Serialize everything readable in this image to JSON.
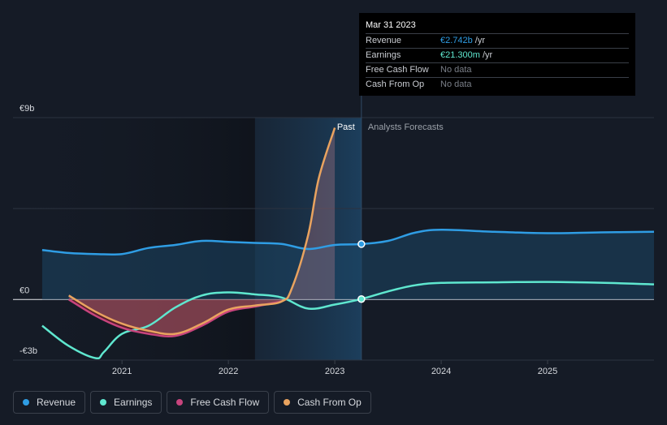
{
  "colors": {
    "revenue": "#2f9de4",
    "earnings": "#5fe7cf",
    "fcf": "#c8447d",
    "cfo": "#e9a35f"
  },
  "tooltip": {
    "date": "Mar 31 2023",
    "rows": [
      {
        "label": "Revenue",
        "value": "€2.742b",
        "unit": "/yr",
        "tone": "blue"
      },
      {
        "label": "Earnings",
        "value": "€21.300m",
        "unit": "/yr",
        "tone": "teal"
      },
      {
        "label": "Free Cash Flow",
        "value": "No data",
        "unit": "",
        "tone": "none"
      },
      {
        "label": "Cash From Op",
        "value": "No data",
        "unit": "",
        "tone": "none"
      }
    ]
  },
  "legend": [
    {
      "label": "Revenue",
      "color": "#2f9de4"
    },
    {
      "label": "Earnings",
      "color": "#5fe7cf"
    },
    {
      "label": "Free Cash Flow",
      "color": "#c8447d"
    },
    {
      "label": "Cash From Op",
      "color": "#e9a35f"
    }
  ],
  "chart_data": {
    "type": "line",
    "title": "",
    "xlabel": "",
    "ylabel": "",
    "x_unit": "year",
    "xlim": [
      2020.22,
      2026.0
    ],
    "ylim": [
      -3,
      9
    ],
    "y_ticks": [
      {
        "value": 9,
        "label": "€9b"
      },
      {
        "value": 0,
        "label": "€0"
      },
      {
        "value": -3,
        "label": "-€3b"
      }
    ],
    "x_ticks": [
      {
        "value": 2021,
        "label": "2021"
      },
      {
        "value": 2022,
        "label": "2022"
      },
      {
        "value": 2023,
        "label": "2023"
      },
      {
        "value": 2024,
        "label": "2024"
      },
      {
        "value": 2025,
        "label": "2025"
      }
    ],
    "past_label": "Past",
    "forecast_label": "Analysts Forecasts",
    "highlight_start": 2022.25,
    "current_date": 2023.25,
    "series": [
      {
        "name": "Revenue",
        "key": "revenue",
        "x": [
          2020.25,
          2020.5,
          2020.75,
          2021.0,
          2021.25,
          2021.5,
          2021.75,
          2022.0,
          2022.25,
          2022.5,
          2022.75,
          2023.0,
          2023.25,
          2023.5,
          2023.75,
          2024.0,
          2024.5,
          2025.0,
          2025.5,
          2026.0
        ],
        "values": [
          2.45,
          2.3,
          2.25,
          2.25,
          2.55,
          2.7,
          2.9,
          2.85,
          2.8,
          2.75,
          2.5,
          2.7,
          2.742,
          2.9,
          3.3,
          3.45,
          3.35,
          3.28,
          3.32,
          3.35
        ]
      },
      {
        "name": "Earnings",
        "key": "earnings",
        "x": [
          2020.25,
          2020.5,
          2020.75,
          2020.83,
          2021.0,
          2021.25,
          2021.5,
          2021.75,
          2022.0,
          2022.25,
          2022.5,
          2022.75,
          2023.0,
          2023.25,
          2023.5,
          2023.75,
          2024.0,
          2024.5,
          2025.0,
          2025.5,
          2026.0
        ],
        "values": [
          -1.3,
          -2.3,
          -2.9,
          -2.6,
          -1.7,
          -1.3,
          -0.4,
          0.2,
          0.35,
          0.25,
          0.1,
          -0.45,
          -0.25,
          0.0213,
          0.4,
          0.7,
          0.82,
          0.85,
          0.87,
          0.83,
          0.75
        ]
      },
      {
        "name": "Free Cash Flow",
        "key": "fcf",
        "x": [
          2020.5,
          2020.75,
          2021.0,
          2021.25,
          2021.5,
          2021.75,
          2022.0,
          2022.25,
          2022.5
        ],
        "values": [
          0.0,
          -0.8,
          -1.4,
          -1.7,
          -1.8,
          -1.3,
          -0.6,
          -0.35,
          -0.1
        ]
      },
      {
        "name": "Cash From Op",
        "key": "cfo",
        "x": [
          2020.5,
          2020.75,
          2021.0,
          2021.25,
          2021.5,
          2021.75,
          2022.0,
          2022.25,
          2022.5,
          2022.6,
          2022.75,
          2022.85,
          2023.0
        ],
        "values": [
          0.2,
          -0.6,
          -1.2,
          -1.55,
          -1.7,
          -1.2,
          -0.5,
          -0.3,
          -0.1,
          0.6,
          3.2,
          6.0,
          8.5
        ]
      }
    ]
  }
}
